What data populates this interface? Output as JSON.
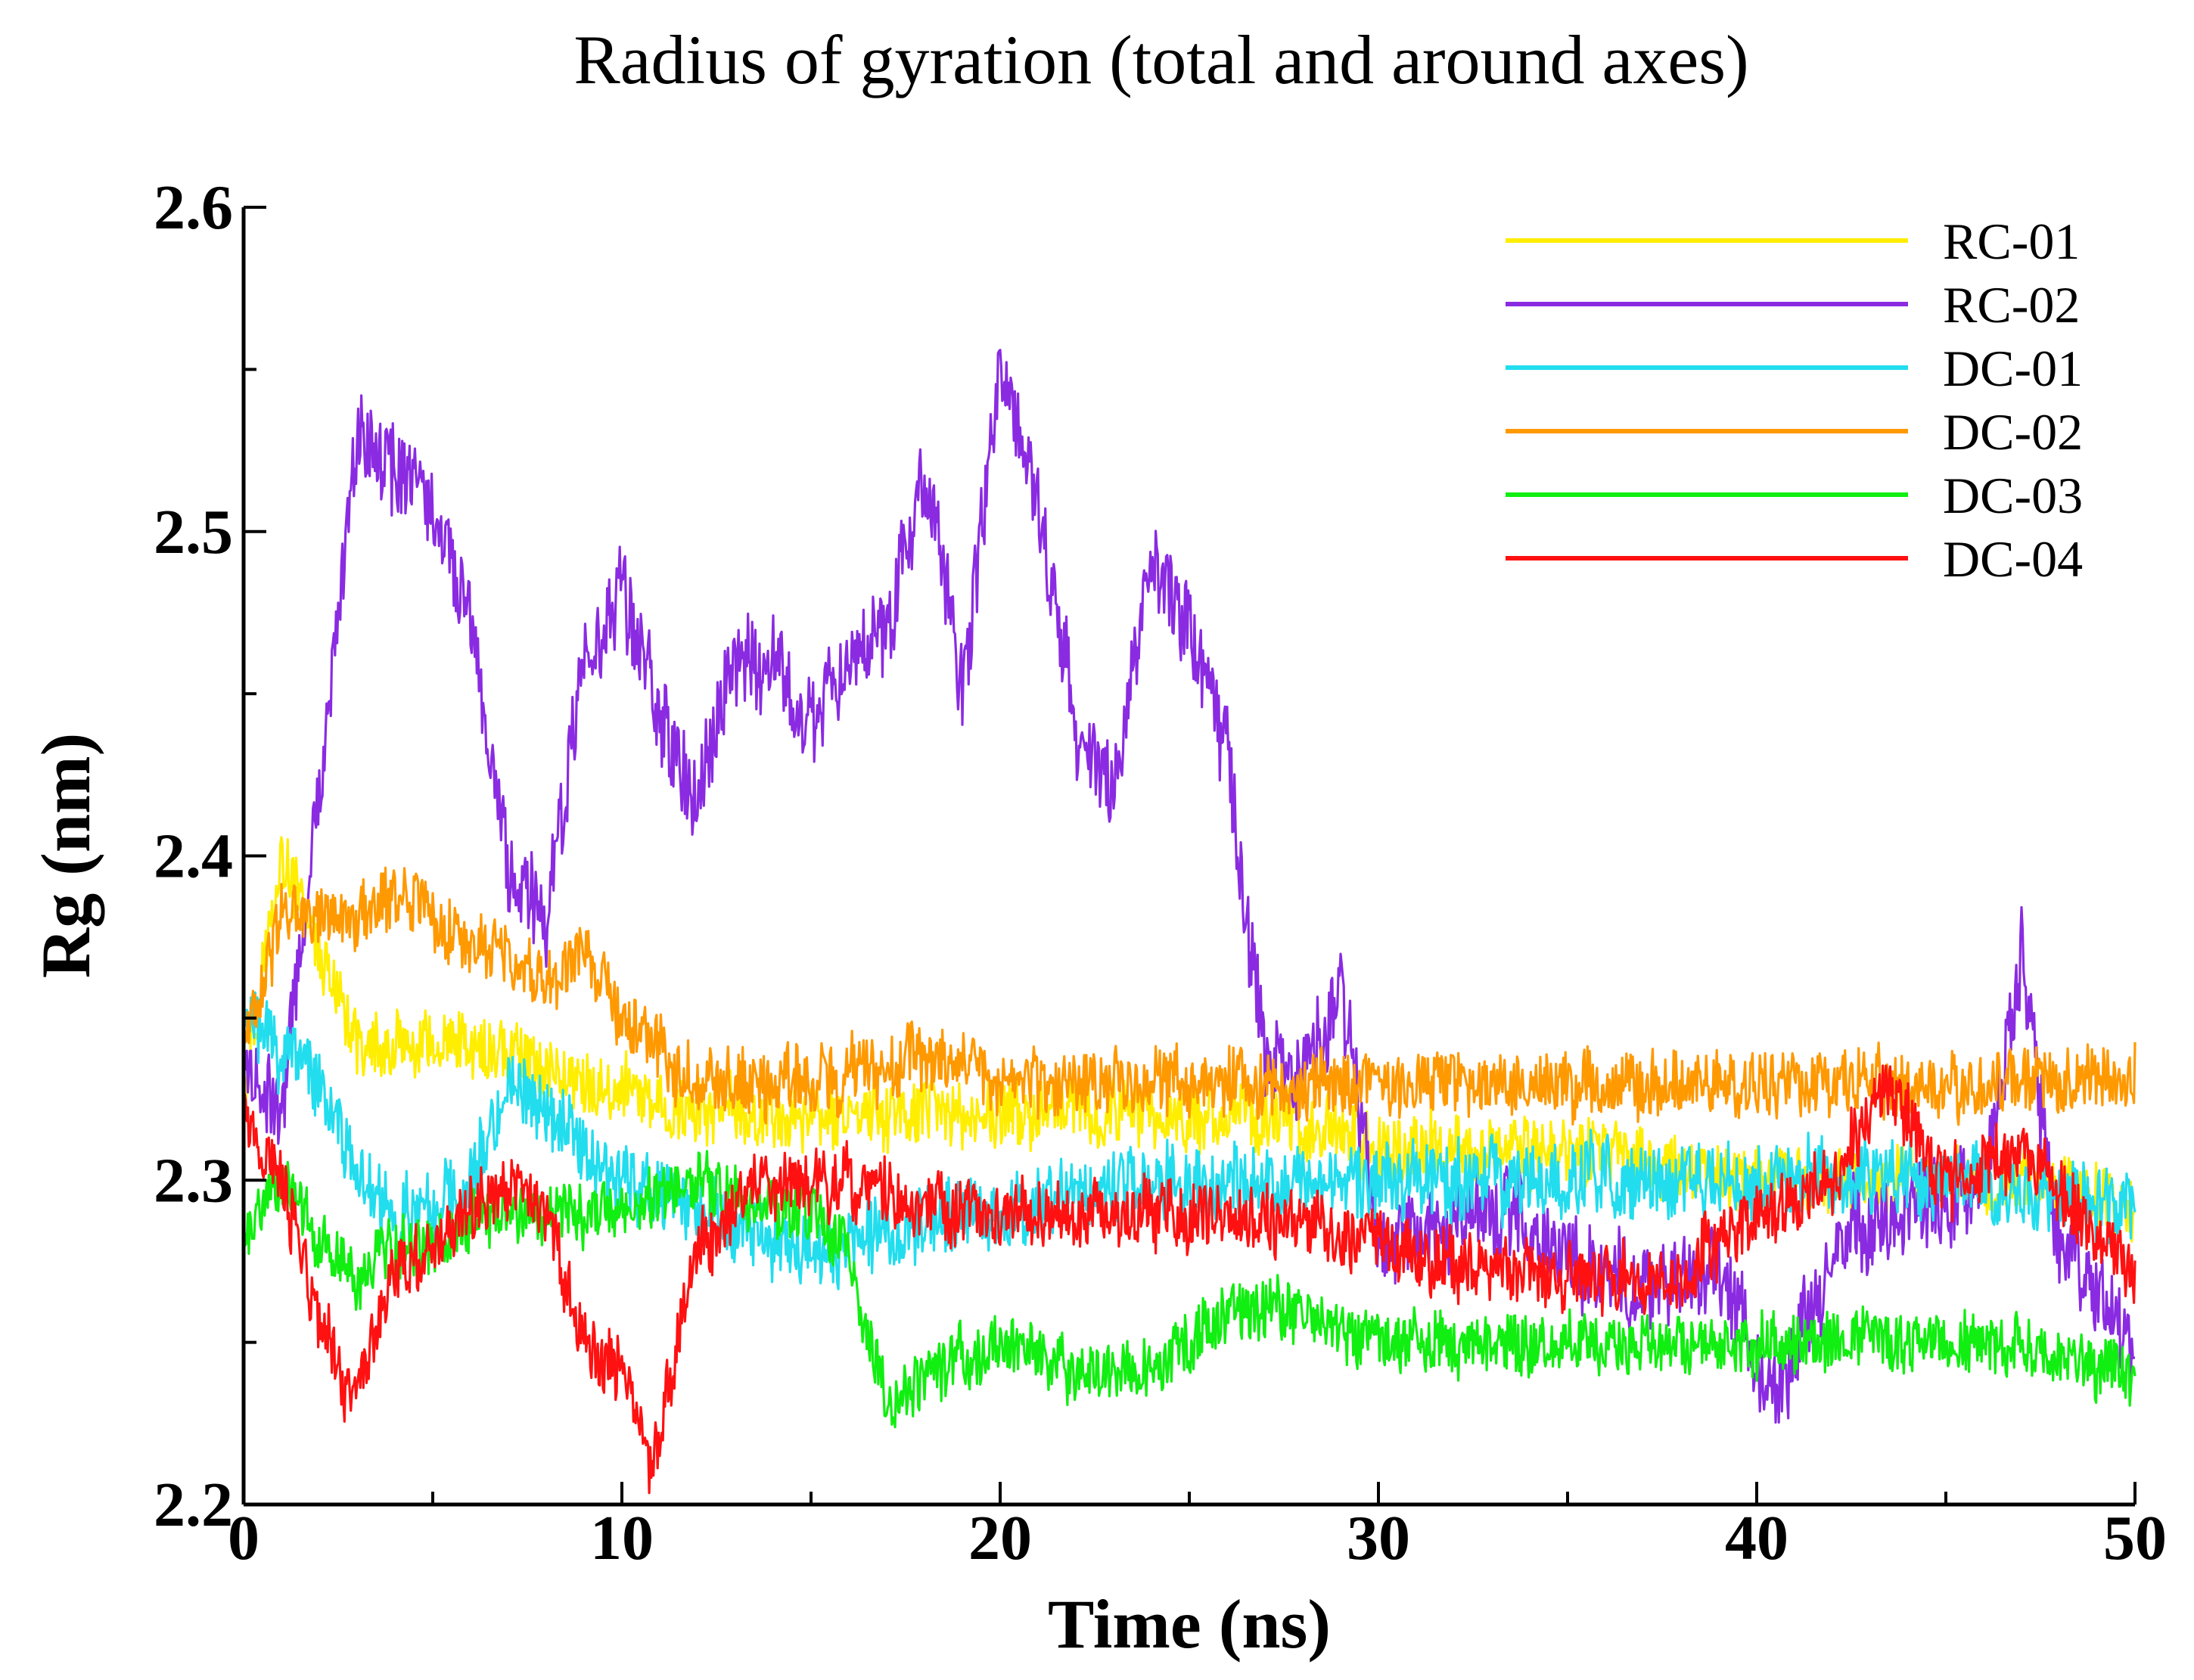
{
  "chart_data": {
    "type": "line",
    "title": "Radius of gyration (total and around axes)",
    "xlabel": "Time (ns)",
    "ylabel": "Rg (nm)",
    "xlim": [
      0,
      50
    ],
    "ylim": [
      2.2,
      2.6
    ],
    "xticks": [
      0,
      10,
      20,
      30,
      40,
      50
    ],
    "xtick_labels": [
      "0",
      "10",
      "20",
      "30",
      "40",
      "50"
    ],
    "yticks": [
      2.2,
      2.3,
      2.4,
      2.5,
      2.6
    ],
    "ytick_labels": [
      "2.2",
      "2.3",
      "2.4",
      "2.5",
      "2.6"
    ],
    "grid": false,
    "legend_position": "top-right",
    "series": [
      {
        "name": "RC-01",
        "color": "#ffee00",
        "x": [
          0,
          1,
          2,
          3,
          5,
          7,
          9,
          12,
          15,
          18,
          21,
          24,
          27,
          30,
          33,
          36,
          39,
          42,
          45,
          48,
          50
        ],
        "values": [
          2.33,
          2.4,
          2.37,
          2.34,
          2.34,
          2.34,
          2.33,
          2.32,
          2.32,
          2.32,
          2.32,
          2.32,
          2.32,
          2.31,
          2.31,
          2.31,
          2.3,
          2.3,
          2.3,
          2.3,
          2.29
        ],
        "noise": 0.011
      },
      {
        "name": "RC-02",
        "color": "#8a2be2",
        "x": [
          0,
          1,
          2,
          3,
          4,
          5,
          6,
          7,
          8,
          9,
          10,
          11,
          12,
          13,
          14,
          15,
          16,
          17,
          18,
          19,
          20,
          21,
          22,
          23,
          24,
          25,
          26,
          27,
          28,
          29,
          30,
          33,
          36,
          39,
          40.5,
          42,
          44,
          46,
          47,
          48,
          50
        ],
        "values": [
          2.34,
          2.32,
          2.42,
          2.53,
          2.52,
          2.51,
          2.47,
          2.4,
          2.38,
          2.46,
          2.48,
          2.44,
          2.42,
          2.46,
          2.46,
          2.44,
          2.46,
          2.47,
          2.52,
          2.45,
          2.55,
          2.51,
          2.44,
          2.42,
          2.49,
          2.47,
          2.43,
          2.34,
          2.33,
          2.36,
          2.28,
          2.29,
          2.27,
          2.27,
          2.23,
          2.28,
          2.29,
          2.3,
          2.37,
          2.28,
          2.25
        ],
        "noise": 0.015
      },
      {
        "name": "DC-01",
        "color": "#22ddee",
        "x": [
          0,
          1,
          2,
          3,
          4,
          5,
          6,
          7,
          8,
          10,
          12,
          14,
          16,
          18,
          20,
          24,
          28,
          30,
          34,
          38,
          42,
          46,
          50
        ],
        "values": [
          2.35,
          2.34,
          2.33,
          2.3,
          2.29,
          2.29,
          2.3,
          2.33,
          2.32,
          2.3,
          2.29,
          2.28,
          2.28,
          2.29,
          2.29,
          2.3,
          2.3,
          2.3,
          2.3,
          2.3,
          2.3,
          2.3,
          2.29
        ],
        "noise": 0.012
      },
      {
        "name": "DC-02",
        "color": "#ff9900",
        "x": [
          0,
          1,
          2,
          3,
          4,
          5,
          6,
          7,
          8,
          9,
          10,
          11,
          12,
          15,
          18,
          20,
          22,
          25,
          28,
          30,
          33,
          36,
          39,
          42,
          45,
          48,
          50
        ],
        "values": [
          2.34,
          2.38,
          2.38,
          2.38,
          2.39,
          2.38,
          2.37,
          2.37,
          2.36,
          2.37,
          2.35,
          2.34,
          2.33,
          2.33,
          2.34,
          2.33,
          2.33,
          2.33,
          2.33,
          2.33,
          2.33,
          2.33,
          2.33,
          2.33,
          2.33,
          2.33,
          2.33
        ],
        "noise": 0.011
      },
      {
        "name": "DC-03",
        "color": "#11ee11",
        "x": [
          0,
          1,
          2,
          3,
          4,
          5,
          6,
          8,
          10,
          12,
          14,
          15,
          16,
          17,
          18,
          20,
          22,
          24,
          26,
          28,
          30,
          34,
          38,
          42,
          46,
          50
        ],
        "values": [
          2.28,
          2.3,
          2.28,
          2.27,
          2.28,
          2.28,
          2.29,
          2.29,
          2.29,
          2.3,
          2.29,
          2.29,
          2.28,
          2.23,
          2.24,
          2.25,
          2.24,
          2.24,
          2.26,
          2.26,
          2.25,
          2.25,
          2.25,
          2.25,
          2.25,
          2.24
        ],
        "noise": 0.01
      },
      {
        "name": "DC-04",
        "color": "#ff1111",
        "x": [
          0,
          1,
          2,
          2.8,
          4,
          5,
          6,
          7,
          8,
          9,
          10,
          10.8,
          12,
          14,
          16,
          18,
          20,
          24,
          27,
          30,
          34,
          38,
          40,
          42,
          43.5,
          45,
          47,
          50
        ],
        "values": [
          2.32,
          2.3,
          2.26,
          2.23,
          2.27,
          2.28,
          2.29,
          2.3,
          2.29,
          2.25,
          2.24,
          2.21,
          2.28,
          2.3,
          2.3,
          2.29,
          2.29,
          2.29,
          2.29,
          2.28,
          2.27,
          2.27,
          2.29,
          2.3,
          2.33,
          2.3,
          2.31,
          2.27
        ],
        "noise": 0.011
      }
    ]
  }
}
